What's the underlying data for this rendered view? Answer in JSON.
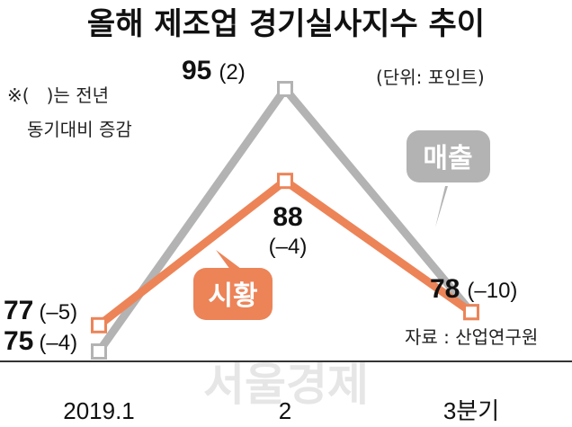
{
  "chart_data": {
    "type": "line",
    "title": "올해 제조업 경기실사지수 추이",
    "unit_label": "(단위: 포인트)",
    "note_lines": [
      "※(   )는 전년",
      "동기대비 증감"
    ],
    "source": "자료 : 산업연구원",
    "watermark": "서울경제",
    "categories": [
      "2019.1",
      "2",
      "3분기"
    ],
    "ylim": [
      70,
      100
    ],
    "series": [
      {
        "name": "매출",
        "color": "#b3b3b3",
        "values": [
          75,
          95,
          78
        ],
        "labels": [
          {
            "value": "75",
            "change": "(–4)"
          },
          {
            "value": "95",
            "change": "(2)"
          },
          {
            "value": "78",
            "change": "(–10)"
          }
        ]
      },
      {
        "name": "시황",
        "color": "#ec8458",
        "values": [
          77,
          88,
          78
        ],
        "labels": [
          {
            "value": "77",
            "change": "(–5)"
          },
          {
            "value": "88",
            "change": "(–4)"
          },
          {
            "value": "",
            "change": ""
          }
        ]
      }
    ]
  }
}
